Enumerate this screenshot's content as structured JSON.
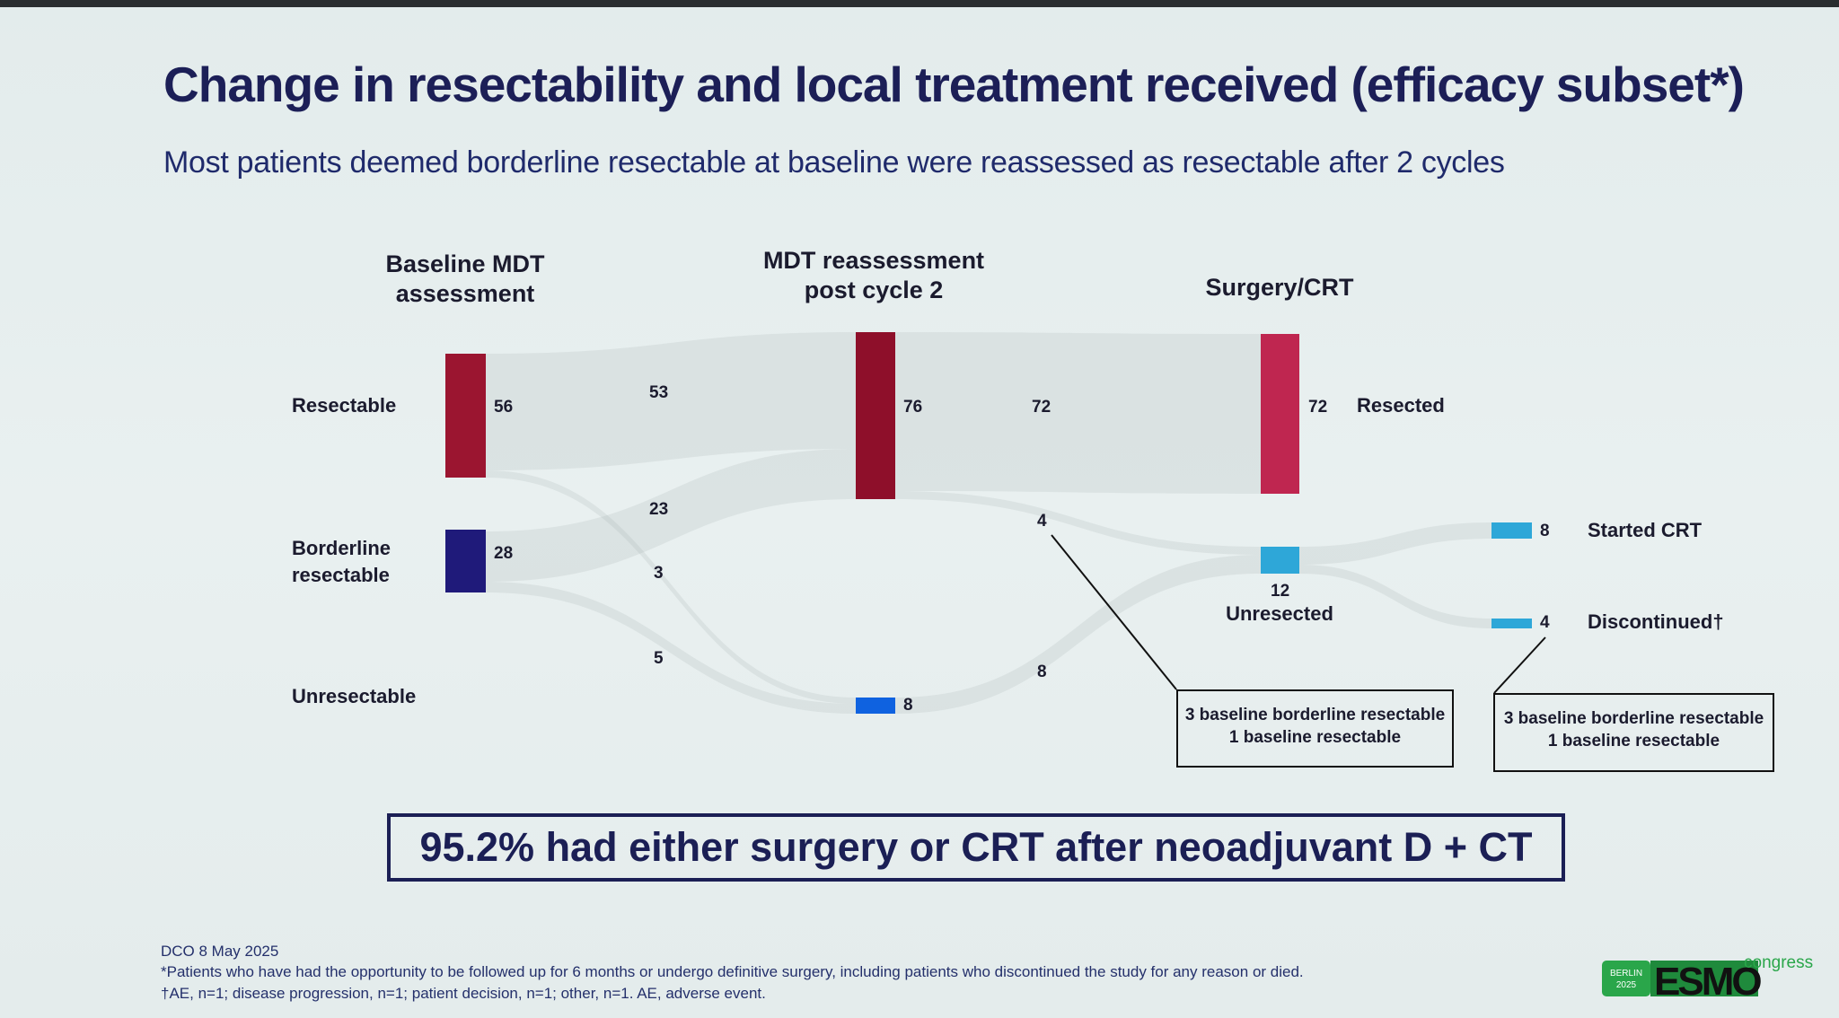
{
  "title": "Change in resectability and local treatment received (efficacy subset*)",
  "subtitle": "Most patients deemed borderline resectable at baseline were reassessed as resectable after 2 cycles",
  "chart_data": {
    "type": "sankey",
    "columns": [
      {
        "header": [
          "Baseline MDT",
          "assessment"
        ]
      },
      {
        "header": [
          "MDT reassessment",
          "post cycle 2"
        ]
      },
      {
        "header": [
          "Surgery/CRT"
        ]
      }
    ],
    "row_labels": {
      "resectable": "Resectable",
      "borderline": [
        "Borderline",
        "resectable"
      ],
      "unresectable": "Unresectable"
    },
    "nodes": [
      {
        "id": "base_res",
        "label": "Resectable",
        "value": 56,
        "color": "#9b1530"
      },
      {
        "id": "base_bord",
        "label": "Borderline resectable",
        "value": 28,
        "color": "#1f1a7a"
      },
      {
        "id": "mdt_res",
        "label": "Resectable",
        "value": 76,
        "color": "#8e0f2a"
      },
      {
        "id": "mdt_unres",
        "label": "Unresectable",
        "value": 8,
        "color": "#0f62e0"
      },
      {
        "id": "resected",
        "label": "Resected",
        "value": 72,
        "color": "#bf2650"
      },
      {
        "id": "unresected",
        "label": "Unresected",
        "value": 12,
        "color": "#2ea7d8"
      },
      {
        "id": "crt",
        "label": "Started CRT",
        "value": 8,
        "color": "#2ea7d8"
      },
      {
        "id": "disc",
        "label": "Discontinued†",
        "value": 4,
        "color": "#2ea7d8"
      }
    ],
    "links": [
      {
        "source": "base_res",
        "target": "mdt_res",
        "value": 53
      },
      {
        "source": "base_bord",
        "target": "mdt_res",
        "value": 23
      },
      {
        "source": "base_res",
        "target": "mdt_unres",
        "value": 3
      },
      {
        "source": "base_bord",
        "target": "mdt_unres",
        "value": 5
      },
      {
        "source": "mdt_res",
        "target": "resected",
        "value": 72
      },
      {
        "source": "mdt_res",
        "target": "unresected",
        "value": 4
      },
      {
        "source": "mdt_unres",
        "target": "unresected",
        "value": 8
      },
      {
        "source": "unresected",
        "target": "crt",
        "value": 8
      },
      {
        "source": "unresected",
        "target": "disc",
        "value": 4
      }
    ],
    "callouts": [
      [
        "3 baseline borderline resectable",
        "1 baseline resectable"
      ],
      [
        "3 baseline borderline resectable",
        "1 baseline resectable"
      ]
    ]
  },
  "conclusion": "95.2% had either surgery or CRT after neoadjuvant D + CT",
  "footer": {
    "dco": "DCO 8 May 2025",
    "note1": "*Patients who have had the opportunity to be followed up for 6 months or undergo definitive surgery, including patients who discontinued the study for any reason or died.",
    "note2": "†AE, n=1; disease progression, n=1; patient decision, n=1; other, n=1. AE, adverse event."
  },
  "logo": {
    "city": "BERLIN",
    "year": "2025",
    "name": "ESMO",
    "suffix": "congress"
  }
}
